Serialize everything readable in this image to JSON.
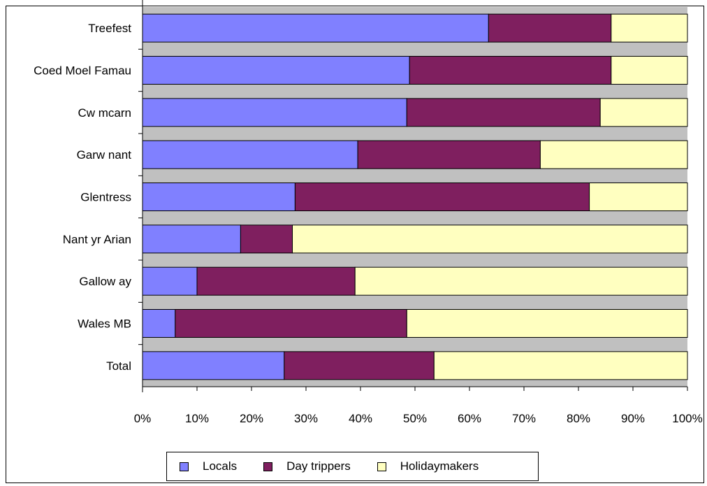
{
  "chart_data": {
    "type": "bar",
    "orientation": "horizontal",
    "stacked": "percent",
    "categories": [
      "Treefest",
      "Coed Moel Famau",
      "Cw mcarn",
      "Garw nant",
      "Glentress",
      "Nant yr Arian",
      "Gallow ay",
      "Wales MB",
      "Total"
    ],
    "series": [
      {
        "name": "Locals",
        "color": "#8080ff",
        "values": [
          63.5,
          49,
          48.5,
          39.5,
          28,
          18,
          10,
          6,
          26
        ]
      },
      {
        "name": "Day trippers",
        "color": "#7f1f5f",
        "values": [
          22.5,
          37,
          35.5,
          33.5,
          54,
          9.5,
          29,
          42.5,
          27.5
        ]
      },
      {
        "name": "Holidaymakers",
        "color": "#ffffc0",
        "values": [
          14,
          14,
          16,
          27,
          18,
          72.5,
          61,
          51.5,
          46.5
        ]
      }
    ],
    "xlim": [
      0,
      100
    ],
    "x_ticks": [
      "0%",
      "10%",
      "20%",
      "30%",
      "40%",
      "50%",
      "60%",
      "70%",
      "80%",
      "90%",
      "100%"
    ],
    "plot_background": "#c0c0c0",
    "grid": false,
    "legend_position": "bottom"
  }
}
